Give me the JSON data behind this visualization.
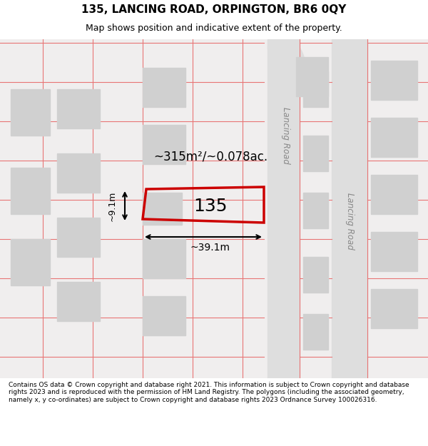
{
  "title_line1": "135, LANCING ROAD, ORPINGTON, BR6 0QY",
  "title_line2": "Map shows position and indicative extent of the property.",
  "footer_text": "Contains OS data © Crown copyright and database right 2021. This information is subject to Crown copyright and database rights 2023 and is reproduced with the permission of HM Land Registry. The polygons (including the associated geometry, namely x, y co-ordinates) are subject to Crown copyright and database rights 2023 Ordnance Survey 100026316.",
  "bg_color": "#f5f5f5",
  "map_bg": "#f0eeee",
  "road_color": "#d9d9d9",
  "plot_line_color": "#e87575",
  "highlight_color": "#cc0000",
  "building_color": "#d9d9d9",
  "area_text": "~315m²/~0.078ac.",
  "width_text": "~39.1m",
  "height_text": "~9.1m",
  "number_text": "135",
  "road_label_top": "Lancing Road",
  "road_label_bottom": "Lancing Road"
}
